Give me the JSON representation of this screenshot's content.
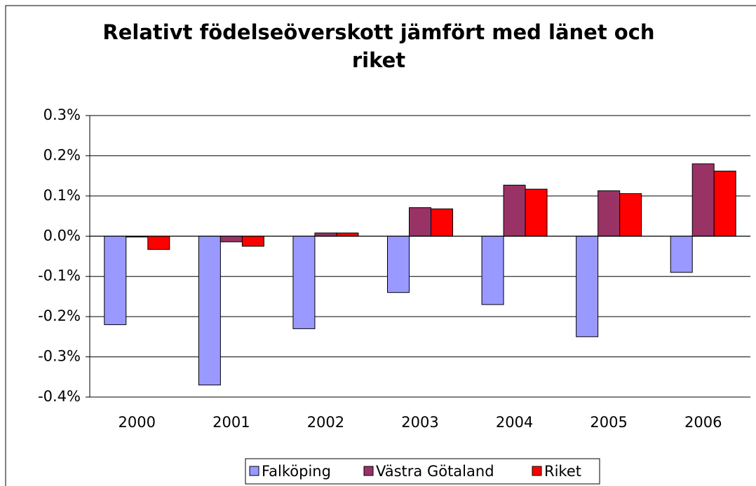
{
  "chart_data": {
    "type": "bar",
    "title": "Relativt födelseöverskott jämfört med länet och riket",
    "categories": [
      "2000",
      "2001",
      "2002",
      "2003",
      "2004",
      "2005",
      "2006"
    ],
    "series": [
      {
        "name": "Falköping",
        "color": "#9999ff",
        "values": [
          -0.22,
          -0.37,
          -0.23,
          -0.14,
          -0.17,
          -0.25,
          -0.09
        ]
      },
      {
        "name": "Västra Götaland",
        "color": "#993366",
        "values": [
          -0.002,
          -0.014,
          0.008,
          0.071,
          0.127,
          0.113,
          0.18
        ]
      },
      {
        "name": "Riket",
        "color": "#ff0000",
        "values": [
          -0.033,
          -0.025,
          0.008,
          0.068,
          0.117,
          0.106,
          0.162
        ]
      }
    ],
    "ylim": [
      -0.4,
      0.3
    ],
    "yticks": [
      {
        "value": -0.4,
        "label": "-0.4%"
      },
      {
        "value": -0.3,
        "label": "-0.3%"
      },
      {
        "value": -0.2,
        "label": "-0.2%"
      },
      {
        "value": -0.1,
        "label": "-0.1%"
      },
      {
        "value": 0,
        "label": "0.0%"
      },
      {
        "value": 0.1,
        "label": "0.1%"
      },
      {
        "value": 0.2,
        "label": "0.2%"
      },
      {
        "value": 0.3,
        "label": "0.3%"
      }
    ],
    "grid": true,
    "legend": "bottom"
  }
}
